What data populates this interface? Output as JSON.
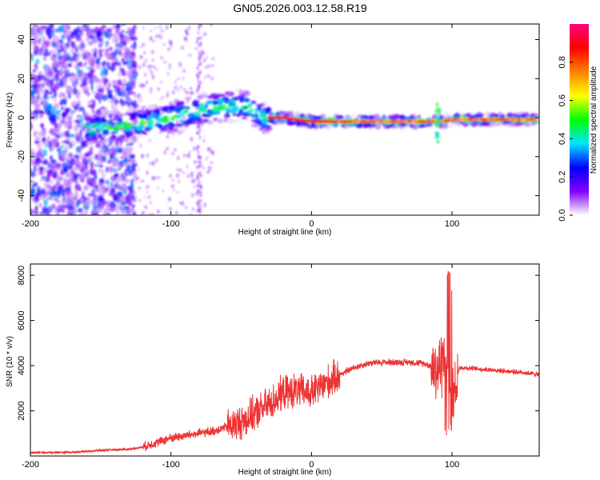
{
  "chart_data": [
    {
      "type": "heatmap",
      "title": "GN05.2026.003.12.58.R19",
      "xlabel": "Height of straight line (km)",
      "ylabel": "Frequency (Hz)",
      "xlim": [
        -200,
        162
      ],
      "ylim": [
        -50,
        48
      ],
      "xticks": [
        -200,
        -100,
        0,
        100
      ],
      "yticks": [
        -40,
        -20,
        0,
        20,
        40
      ],
      "colorbar": {
        "label": "Normalized spectral amplitude",
        "range": [
          0,
          1
        ],
        "ticks": [
          "0.0",
          "0.2",
          "0.4",
          "0.6",
          "0.8"
        ],
        "tick_values": [
          0.0,
          0.2,
          0.4,
          0.6,
          0.8
        ],
        "stops": [
          "#ffffff",
          "#8000ff",
          "#0000ff",
          "#00e5ff",
          "#00ff00",
          "#ffff00",
          "#ff8000",
          "#ff0000",
          "#ff0080"
        ]
      },
      "ridge": {
        "description_points_x": [
          -160,
          -130,
          -100,
          -80,
          -60,
          -45,
          -35,
          -20,
          0,
          50,
          85,
          95,
          100,
          162
        ],
        "center_freq_y": [
          -6,
          -4,
          0,
          4,
          6,
          6,
          0,
          0,
          -2,
          -2,
          -2,
          -2,
          -1,
          -1
        ]
      }
    },
    {
      "type": "line",
      "title": "",
      "xlabel": "Height of straight line (km)",
      "ylabel": "SNR (10 * v/v)",
      "xlim": [
        -200,
        162
      ],
      "ylim": [
        0,
        8500
      ],
      "xticks": [
        -200,
        -100,
        0,
        100
      ],
      "yticks": [
        2000,
        4000,
        6000,
        8000
      ],
      "color": "#ee3333",
      "series": [
        {
          "name": "SNR",
          "x": [
            -200,
            -190,
            -180,
            -170,
            -160,
            -150,
            -140,
            -130,
            -120,
            -110,
            -100,
            -90,
            -80,
            -70,
            -60,
            -50,
            -40,
            -30,
            -20,
            -10,
            0,
            10,
            20,
            30,
            40,
            50,
            60,
            70,
            80,
            85,
            90,
            95,
            100,
            105,
            110,
            120,
            130,
            140,
            150,
            162
          ],
          "values": [
            150,
            150,
            160,
            170,
            200,
            250,
            280,
            300,
            400,
            600,
            800,
            900,
            1000,
            1100,
            1300,
            1500,
            1900,
            2300,
            2800,
            2900,
            2800,
            3200,
            3600,
            3900,
            4100,
            4150,
            4150,
            4150,
            4100,
            4000,
            3800,
            4500,
            2500,
            3900,
            3900,
            3850,
            3800,
            3750,
            3700,
            3600
          ]
        }
      ]
    }
  ]
}
